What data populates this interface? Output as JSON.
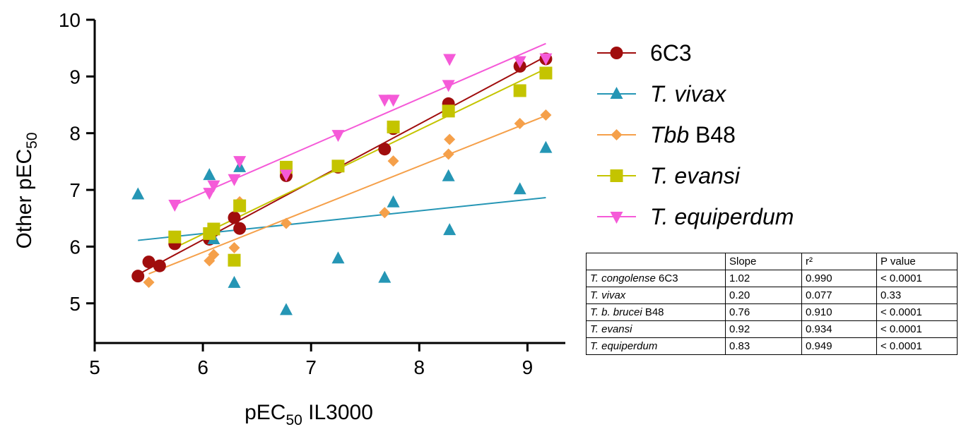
{
  "chart_data": {
    "type": "scatter",
    "xlabel": {
      "main": "pEC",
      "sub": "50",
      "suffix": " IL3000"
    },
    "ylabel": {
      "main": "Other pEC",
      "sub": "50"
    },
    "xlim": [
      5,
      9.35
    ],
    "ylim": [
      4.3,
      10
    ],
    "xticks": [
      5,
      6,
      7,
      8,
      9
    ],
    "yticks": [
      5,
      6,
      7,
      8,
      9,
      10
    ],
    "grid": false,
    "legend_position": "right",
    "series": [
      {
        "name": "6C3",
        "italic_part": "",
        "plain_part": "6C3",
        "marker": "circle",
        "color": "#a00d0d",
        "fit": {
          "slope": 1.02,
          "intercept": -0.0
        },
        "points": [
          [
            5.4,
            5.48
          ],
          [
            5.5,
            5.73
          ],
          [
            5.6,
            5.66
          ],
          [
            5.74,
            6.05
          ],
          [
            6.06,
            6.13
          ],
          [
            6.1,
            6.28
          ],
          [
            6.29,
            6.51
          ],
          [
            6.34,
            6.32
          ],
          [
            6.77,
            7.25
          ],
          [
            7.25,
            7.4
          ],
          [
            7.68,
            7.72
          ],
          [
            7.76,
            8.08
          ],
          [
            8.27,
            8.52
          ],
          [
            8.93,
            9.18
          ],
          [
            9.17,
            9.31
          ]
        ]
      },
      {
        "name": "T. vivax",
        "italic_part": "T. vivax",
        "plain_part": "",
        "marker": "triangle-up",
        "color": "#2596b5",
        "fit": {
          "slope": 0.2,
          "intercept": 5.03
        },
        "points": [
          [
            5.4,
            6.92
          ],
          [
            6.06,
            7.26
          ],
          [
            6.1,
            6.13
          ],
          [
            6.29,
            5.36
          ],
          [
            6.34,
            7.4
          ],
          [
            6.77,
            4.88
          ],
          [
            7.25,
            5.79
          ],
          [
            7.68,
            5.45
          ],
          [
            7.76,
            6.78
          ],
          [
            8.27,
            7.24
          ],
          [
            8.28,
            6.29
          ],
          [
            8.93,
            7.01
          ],
          [
            9.17,
            7.74
          ]
        ]
      },
      {
        "name": "Tbb B48",
        "italic_part": "Tbb",
        "plain_part": " B48",
        "marker": "diamond",
        "color": "#f5a04a",
        "fit": {
          "slope": 0.76,
          "intercept": 1.34
        },
        "points": [
          [
            5.5,
            5.37
          ],
          [
            6.06,
            5.75
          ],
          [
            6.1,
            5.86
          ],
          [
            6.29,
            5.98
          ],
          [
            6.34,
            6.79
          ],
          [
            6.77,
            6.41
          ],
          [
            7.68,
            6.6
          ],
          [
            7.76,
            7.51
          ],
          [
            8.27,
            7.63
          ],
          [
            8.28,
            7.89
          ],
          [
            8.93,
            8.17
          ],
          [
            9.17,
            8.32
          ]
        ]
      },
      {
        "name": "T. evansi",
        "italic_part": "T. evansi",
        "plain_part": "",
        "marker": "square",
        "color": "#c4c400",
        "fit": {
          "slope": 0.92,
          "intercept": 0.7
        },
        "points": [
          [
            5.74,
            6.17
          ],
          [
            6.06,
            6.23
          ],
          [
            6.1,
            6.31
          ],
          [
            6.29,
            5.76
          ],
          [
            6.34,
            6.72
          ],
          [
            6.77,
            7.4
          ],
          [
            7.25,
            7.42
          ],
          [
            7.76,
            8.11
          ],
          [
            8.27,
            8.39
          ],
          [
            8.93,
            8.75
          ],
          [
            9.17,
            9.06
          ]
        ]
      },
      {
        "name": "T. equiperdum",
        "italic_part": "T. equiperdum",
        "plain_part": "",
        "marker": "triangle-down",
        "color": "#f55ad8",
        "fit": {
          "slope": 0.83,
          "intercept": 1.97
        },
        "points": [
          [
            5.74,
            6.74
          ],
          [
            6.06,
            6.95
          ],
          [
            6.1,
            7.08
          ],
          [
            6.29,
            7.19
          ],
          [
            6.34,
            7.51
          ],
          [
            6.77,
            7.27
          ],
          [
            7.25,
            7.97
          ],
          [
            7.68,
            8.59
          ],
          [
            7.76,
            8.59
          ],
          [
            8.27,
            8.85
          ],
          [
            8.28,
            9.31
          ],
          [
            8.93,
            9.27
          ],
          [
            9.17,
            9.32
          ]
        ]
      }
    ]
  },
  "table": {
    "headers": [
      "",
      "Slope",
      "r²",
      "P value"
    ],
    "rows": [
      {
        "italic": "T. congolense",
        "plain": " 6C3",
        "slope": "1.02",
        "r2": "0.990",
        "p": "< 0.0001"
      },
      {
        "italic": "T. vivax",
        "plain": "",
        "slope": "0.20",
        "r2": "0.077",
        "p": "0.33"
      },
      {
        "italic": "T. b. brucei",
        "plain": " B48",
        "slope": "0.76",
        "r2": "0.910",
        "p": "< 0.0001"
      },
      {
        "italic": "T. evansi",
        "plain": "",
        "slope": "0.92",
        "r2": "0.934",
        "p": "< 0.0001"
      },
      {
        "italic": "T. equiperdum",
        "plain": "",
        "slope": "0.83",
        "r2": "0.949",
        "p": "< 0.0001"
      }
    ]
  }
}
